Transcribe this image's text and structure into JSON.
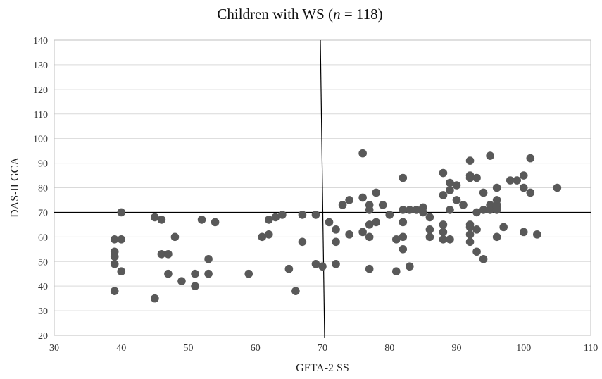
{
  "chart_data": {
    "type": "scatter",
    "title": {
      "prefix": "Children with WS (",
      "n_symbol": "n",
      "suffix": " = 118)"
    },
    "xlabel": "GFTA-2 SS",
    "ylabel": "DAS-II GCA",
    "xlim": [
      30,
      110
    ],
    "ylim": [
      20,
      140
    ],
    "xticks": [
      30,
      40,
      50,
      60,
      70,
      80,
      90,
      100,
      110
    ],
    "yticks": [
      20,
      30,
      40,
      50,
      60,
      70,
      80,
      90,
      100,
      110,
      120,
      130,
      140
    ],
    "grid": "horizontal",
    "reference_lines": {
      "horizontal_y": 70,
      "vertical_x_bottom": 70,
      "vertical_x_top": 70
    },
    "point_color": "#595959",
    "points": [
      [
        39,
        59
      ],
      [
        39,
        54
      ],
      [
        39,
        52
      ],
      [
        39,
        49
      ],
      [
        39,
        38
      ],
      [
        40,
        70
      ],
      [
        40,
        59
      ],
      [
        40,
        46
      ],
      [
        45,
        68
      ],
      [
        45,
        35
      ],
      [
        46,
        67
      ],
      [
        46,
        53
      ],
      [
        47,
        53
      ],
      [
        47,
        45
      ],
      [
        48,
        60
      ],
      [
        49,
        42
      ],
      [
        51,
        45
      ],
      [
        51,
        40
      ],
      [
        52,
        67
      ],
      [
        53,
        51
      ],
      [
        53,
        45
      ],
      [
        54,
        66
      ],
      [
        59,
        45
      ],
      [
        61,
        60
      ],
      [
        62,
        67
      ],
      [
        62,
        61
      ],
      [
        63,
        68
      ],
      [
        64,
        69
      ],
      [
        65,
        47
      ],
      [
        66,
        38
      ],
      [
        67,
        69
      ],
      [
        67,
        58
      ],
      [
        69,
        69
      ],
      [
        69,
        49
      ],
      [
        70,
        48
      ],
      [
        71,
        66
      ],
      [
        72,
        63
      ],
      [
        72,
        58
      ],
      [
        72,
        49
      ],
      [
        73,
        73
      ],
      [
        74,
        75
      ],
      [
        74,
        61
      ],
      [
        76,
        94
      ],
      [
        76,
        76
      ],
      [
        76,
        62
      ],
      [
        77,
        73
      ],
      [
        77,
        71
      ],
      [
        77,
        65
      ],
      [
        77,
        60
      ],
      [
        77,
        47
      ],
      [
        78,
        78
      ],
      [
        78,
        66
      ],
      [
        79,
        73
      ],
      [
        80,
        69
      ],
      [
        81,
        59
      ],
      [
        81,
        46
      ],
      [
        82,
        84
      ],
      [
        82,
        71
      ],
      [
        82,
        66
      ],
      [
        82,
        60
      ],
      [
        82,
        55
      ],
      [
        83,
        71
      ],
      [
        83,
        48
      ],
      [
        84,
        71
      ],
      [
        85,
        72
      ],
      [
        85,
        70
      ],
      [
        86,
        68
      ],
      [
        86,
        63
      ],
      [
        86,
        60
      ],
      [
        88,
        86
      ],
      [
        88,
        77
      ],
      [
        88,
        65
      ],
      [
        88,
        62
      ],
      [
        88,
        59
      ],
      [
        89,
        82
      ],
      [
        89,
        79
      ],
      [
        89,
        71
      ],
      [
        89,
        59
      ],
      [
        90,
        81
      ],
      [
        90,
        75
      ],
      [
        91,
        73
      ],
      [
        92,
        91
      ],
      [
        92,
        85
      ],
      [
        92,
        84
      ],
      [
        92,
        65
      ],
      [
        92,
        64
      ],
      [
        92,
        61
      ],
      [
        92,
        58
      ],
      [
        93,
        84
      ],
      [
        93,
        70
      ],
      [
        93,
        63
      ],
      [
        93,
        54
      ],
      [
        94,
        78
      ],
      [
        94,
        71
      ],
      [
        94,
        51
      ],
      [
        95,
        93
      ],
      [
        95,
        73
      ],
      [
        95,
        71
      ],
      [
        96,
        80
      ],
      [
        96,
        75
      ],
      [
        96,
        73
      ],
      [
        96,
        72
      ],
      [
        96,
        71
      ],
      [
        96,
        60
      ],
      [
        97,
        64
      ],
      [
        98,
        83
      ],
      [
        99,
        83
      ],
      [
        100,
        85
      ],
      [
        100,
        80
      ],
      [
        100,
        62
      ],
      [
        101,
        92
      ],
      [
        101,
        78
      ],
      [
        102,
        61
      ],
      [
        105,
        80
      ]
    ]
  }
}
